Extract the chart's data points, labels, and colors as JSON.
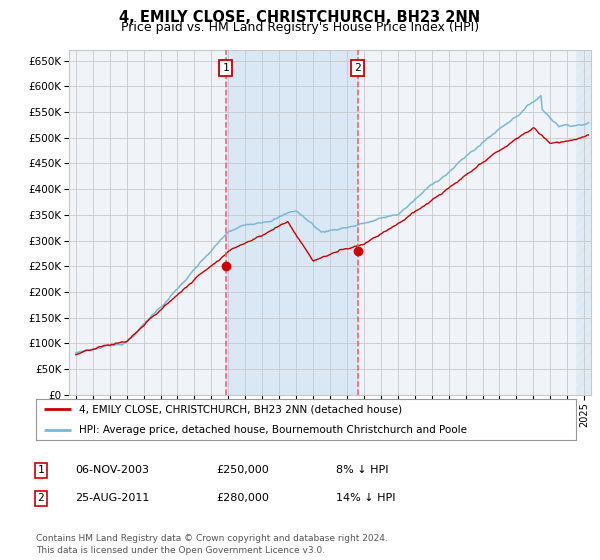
{
  "title": "4, EMILY CLOSE, CHRISTCHURCH, BH23 2NN",
  "subtitle": "Price paid vs. HM Land Registry's House Price Index (HPI)",
  "legend_label_red": "4, EMILY CLOSE, CHRISTCHURCH, BH23 2NN (detached house)",
  "legend_label_blue": "HPI: Average price, detached house, Bournemouth Christchurch and Poole",
  "table_row1": [
    "1",
    "06-NOV-2003",
    "£250,000",
    "8% ↓ HPI"
  ],
  "table_row2": [
    "2",
    "25-AUG-2011",
    "£280,000",
    "14% ↓ HPI"
  ],
  "footer": "Contains HM Land Registry data © Crown copyright and database right 2024.\nThis data is licensed under the Open Government Licence v3.0.",
  "sale1_date_num": 2003.85,
  "sale2_date_num": 2011.65,
  "sale1_price": 250000,
  "sale2_price": 280000,
  "ylim": [
    0,
    670000
  ],
  "xlim_start": 1994.6,
  "xlim_end": 2025.4,
  "background_color": "#ffffff",
  "plot_bg_color": "#f0f4f8",
  "grid_color": "#c8c8c8",
  "hpi_color": "#7ab8d8",
  "price_color": "#cc0000",
  "shade_color": "#dae8f5",
  "dashed_color": "#e86060",
  "title_fontsize": 10.5,
  "subtitle_fontsize": 9,
  "tick_fontsize": 7.5
}
